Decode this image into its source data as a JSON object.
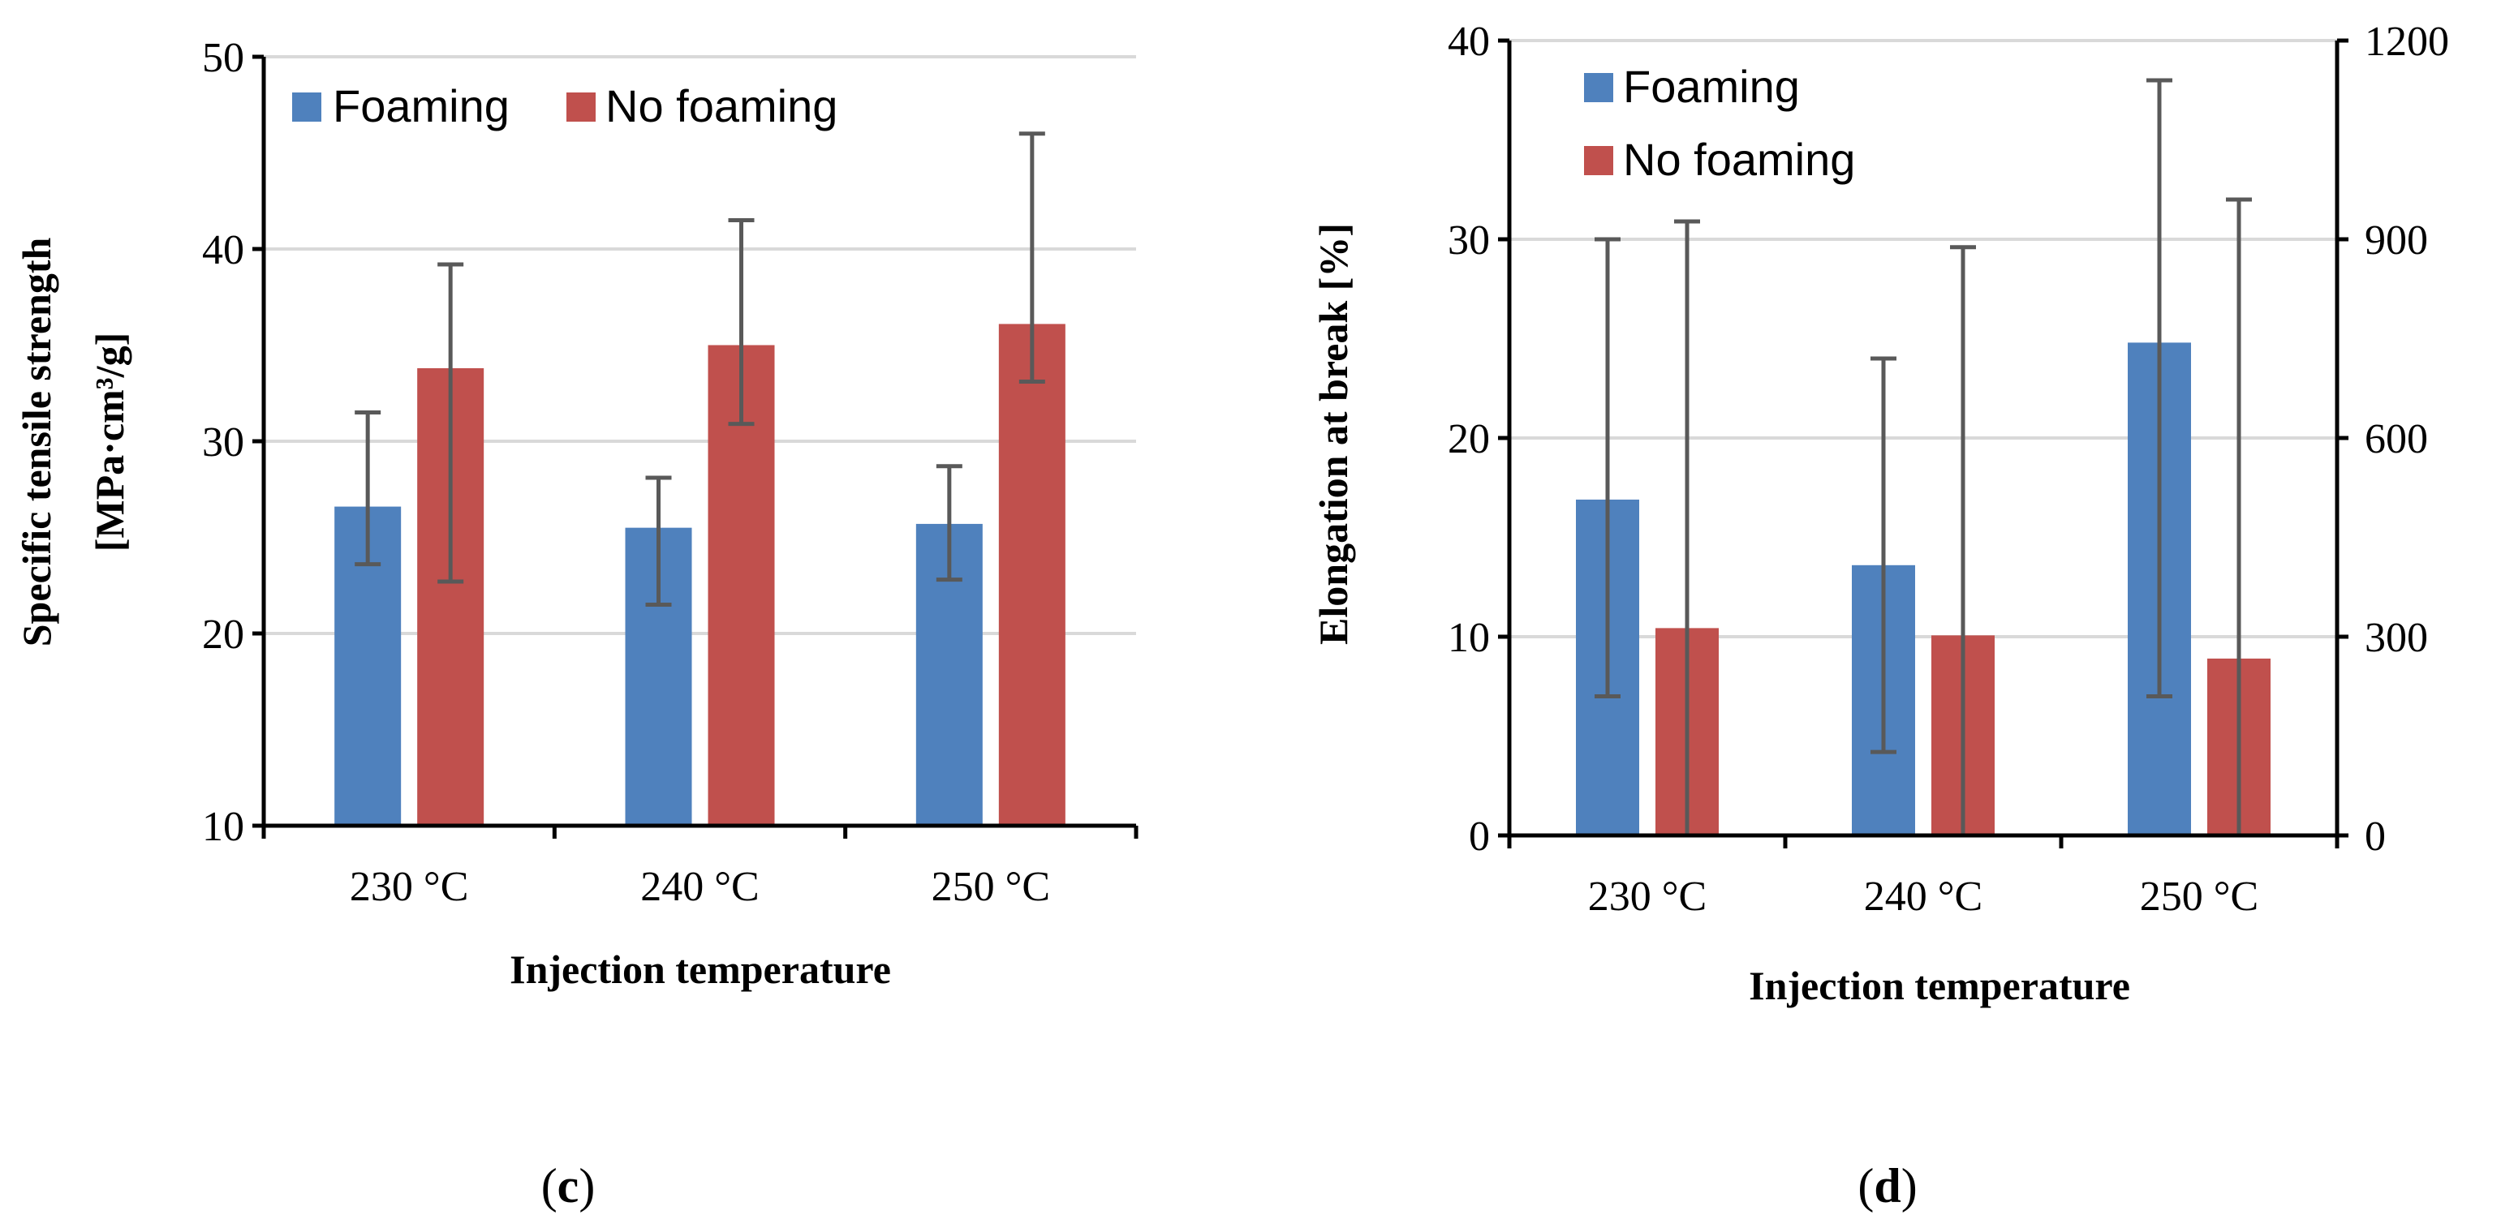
{
  "colors": {
    "foaming": "#4f81bd",
    "no_foaming": "#c0504d",
    "grid": "#d9d9d9",
    "error": "#595959"
  },
  "chart_data": [
    {
      "panel": "c",
      "type": "bar",
      "xlabel": "Injection temperature",
      "ylabel": "Specific tensile strength",
      "ylabel_units": "[MPa·cm³/g]",
      "categories": [
        "230 °C",
        "240 °C",
        "250 °C"
      ],
      "ylim": [
        10,
        50
      ],
      "yticks": [
        10,
        20,
        30,
        40,
        50
      ],
      "ytick_labels": [
        "10",
        "20",
        "30",
        "40",
        "50"
      ],
      "grid": true,
      "legend": "top-left",
      "series": [
        {
          "name": "Foaming",
          "values": [
            26.6,
            25.5,
            25.7
          ],
          "err_low": [
            23.6,
            21.5,
            22.8
          ],
          "err_high": [
            31.5,
            28.1,
            28.7
          ]
        },
        {
          "name": "No foaming",
          "values": [
            33.8,
            35.0,
            36.1
          ],
          "err_low": [
            22.7,
            30.9,
            33.1
          ],
          "err_high": [
            39.2,
            41.5,
            46.0
          ]
        }
      ]
    },
    {
      "panel": "d",
      "type": "bar",
      "xlabel": "Injection temperature",
      "ylabel": "Elongation at break [%]",
      "categories": [
        "230 °C",
        "240 °C",
        "250 °C"
      ],
      "ylim": [
        0,
        40
      ],
      "yticks": [
        0,
        10,
        20,
        30,
        40
      ],
      "ytick_labels": [
        "0",
        "10",
        "20",
        "30",
        "40"
      ],
      "y2lim": [
        0,
        1200
      ],
      "y2ticks": [
        0,
        300,
        600,
        900,
        1200
      ],
      "y2tick_labels": [
        "0",
        "300",
        "600",
        "900",
        "1200"
      ],
      "grid": true,
      "legend": "top-left",
      "series": [
        {
          "name": "Foaming",
          "axis": "left",
          "values": [
            16.9,
            13.6,
            24.8
          ],
          "err_low": [
            7.0,
            4.2,
            7.0
          ],
          "err_high": [
            30.0,
            24.0,
            38.0
          ]
        },
        {
          "name": "No foaming",
          "axis": "right",
          "values": [
            313,
            302,
            267
          ],
          "err_low": [
            0,
            0,
            0
          ],
          "err_high": [
            927,
            888,
            960
          ]
        }
      ]
    }
  ]
}
